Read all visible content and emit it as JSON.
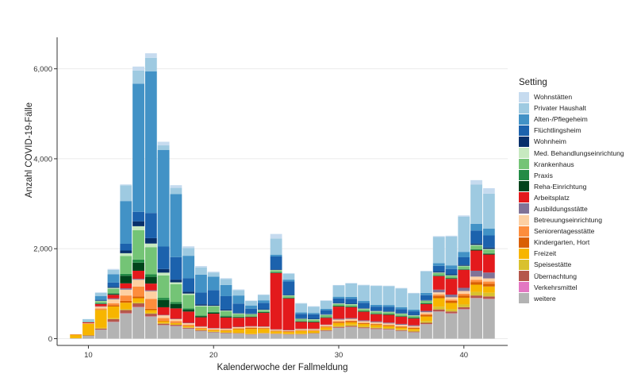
{
  "chart_data": {
    "type": "bar",
    "stacked": true,
    "title": "",
    "xlabel": "Kalenderwoche der Fallmeldung",
    "ylabel": "Anzahl COVID-19-Fälle",
    "x_ticks": [
      10,
      20,
      30,
      40
    ],
    "y_ticks": [
      0,
      2000,
      4000,
      6000
    ],
    "y_tick_labels": [
      "0",
      "2,000",
      "4,000",
      "6,000"
    ],
    "xlim": [
      7.5,
      43.5
    ],
    "ylim": [
      -150,
      6700
    ],
    "grid": "horizontal",
    "legend_position": "right",
    "legend_title": "Setting",
    "weeks": [
      9,
      10,
      11,
      12,
      13,
      14,
      15,
      16,
      17,
      18,
      19,
      20,
      21,
      22,
      23,
      24,
      25,
      26,
      27,
      28,
      29,
      30,
      31,
      32,
      33,
      34,
      35,
      36,
      37,
      38,
      39,
      40,
      41,
      42
    ],
    "series": [
      {
        "name": "weitere",
        "color": "#b3b3b3",
        "values": [
          10,
          60,
          200,
          370,
          560,
          700,
          490,
          300,
          280,
          220,
          170,
          140,
          120,
          110,
          90,
          110,
          100,
          90,
          90,
          110,
          170,
          240,
          260,
          230,
          210,
          200,
          170,
          140,
          320,
          600,
          560,
          650,
          900,
          880
        ]
      },
      {
        "name": "Verkehrsmittel",
        "color": "#e377c2",
        "values": [
          0,
          0,
          0,
          5,
          5,
          5,
          5,
          3,
          3,
          3,
          2,
          2,
          2,
          2,
          2,
          2,
          2,
          2,
          2,
          2,
          3,
          3,
          3,
          3,
          3,
          3,
          3,
          3,
          3,
          5,
          5,
          5,
          5,
          5
        ]
      },
      {
        "name": "Übernachtung",
        "color": "#b5574b",
        "values": [
          0,
          10,
          25,
          60,
          70,
          80,
          60,
          30,
          25,
          20,
          15,
          10,
          10,
          10,
          8,
          8,
          8,
          8,
          10,
          10,
          15,
          20,
          20,
          20,
          20,
          15,
          15,
          15,
          30,
          45,
          40,
          45,
          55,
          55
        ]
      },
      {
        "name": "Speisestätte",
        "color": "#d9c12e",
        "values": [
          0,
          10,
          15,
          20,
          25,
          25,
          20,
          15,
          10,
          10,
          8,
          8,
          8,
          8,
          8,
          8,
          8,
          8,
          10,
          10,
          15,
          25,
          30,
          25,
          20,
          20,
          20,
          20,
          40,
          60,
          50,
          60,
          80,
          80
        ]
      },
      {
        "name": "Freizeit",
        "color": "#f7b500",
        "values": [
          80,
          250,
          400,
          260,
          140,
          90,
          60,
          40,
          30,
          25,
          20,
          25,
          40,
          80,
          110,
          90,
          45,
          40,
          60,
          40,
          50,
          60,
          50,
          50,
          50,
          40,
          40,
          40,
          100,
          190,
          140,
          150,
          160,
          140
        ]
      },
      {
        "name": "Kindergarten, Hort",
        "color": "#d95f02",
        "values": [
          0,
          5,
          10,
          30,
          40,
          40,
          30,
          10,
          5,
          5,
          5,
          5,
          10,
          15,
          20,
          15,
          10,
          10,
          10,
          10,
          15,
          25,
          25,
          20,
          20,
          20,
          20,
          20,
          35,
          50,
          45,
          50,
          60,
          60
        ]
      },
      {
        "name": "Seniorentagesstätte",
        "color": "#fd8d3c",
        "values": [
          0,
          0,
          20,
          40,
          120,
          220,
          220,
          60,
          40,
          30,
          20,
          15,
          10,
          10,
          10,
          10,
          10,
          10,
          10,
          10,
          10,
          15,
          15,
          10,
          10,
          10,
          10,
          10,
          20,
          30,
          30,
          40,
          50,
          50
        ]
      },
      {
        "name": "Betreuungseinrichtung",
        "color": "#fdd0a2",
        "values": [
          0,
          10,
          40,
          90,
          130,
          150,
          170,
          60,
          40,
          30,
          25,
          20,
          20,
          20,
          20,
          20,
          15,
          15,
          20,
          20,
          25,
          35,
          35,
          30,
          30,
          30,
          30,
          30,
          40,
          50,
          50,
          60,
          70,
          70
        ]
      },
      {
        "name": "Ausbildungsstätte",
        "color": "#807397",
        "values": [
          0,
          0,
          10,
          20,
          30,
          20,
          20,
          10,
          10,
          10,
          10,
          10,
          10,
          10,
          10,
          10,
          10,
          10,
          10,
          10,
          10,
          20,
          20,
          20,
          20,
          20,
          20,
          20,
          30,
          60,
          60,
          70,
          130,
          130
        ]
      },
      {
        "name": "Arbeitsplatz",
        "color": "#e31a1c",
        "values": [
          5,
          20,
          50,
          80,
          110,
          180,
          150,
          170,
          230,
          250,
          200,
          320,
          240,
          200,
          200,
          300,
          1250,
          700,
          150,
          140,
          150,
          270,
          240,
          190,
          160,
          170,
          160,
          150,
          150,
          300,
          350,
          400,
          450,
          400
        ]
      },
      {
        "name": "Reha-Einrichtung",
        "color": "#00441b",
        "values": [
          0,
          0,
          10,
          20,
          170,
          180,
          150,
          160,
          100,
          40,
          20,
          20,
          20,
          10,
          10,
          10,
          10,
          10,
          10,
          10,
          10,
          10,
          10,
          10,
          10,
          10,
          10,
          10,
          10,
          10,
          10,
          10,
          15,
          15
        ]
      },
      {
        "name": "Praxis",
        "color": "#238b45",
        "values": [
          0,
          0,
          10,
          15,
          40,
          70,
          60,
          50,
          40,
          30,
          20,
          20,
          20,
          15,
          10,
          10,
          10,
          10,
          10,
          10,
          10,
          10,
          10,
          10,
          10,
          10,
          10,
          10,
          10,
          10,
          10,
          10,
          15,
          15
        ]
      },
      {
        "name": "Krankenhaus",
        "color": "#74c476",
        "values": [
          0,
          10,
          40,
          100,
          400,
          650,
          600,
          500,
          400,
          300,
          200,
          120,
          100,
          60,
          40,
          40,
          40,
          40,
          40,
          40,
          40,
          40,
          40,
          40,
          40,
          40,
          40,
          40,
          50,
          50,
          50,
          60,
          80,
          80
        ]
      },
      {
        "name": "Med. Behandlungseinrichtung",
        "color": "#c7e9c0",
        "values": [
          0,
          0,
          10,
          20,
          60,
          90,
          80,
          60,
          40,
          30,
          20,
          15,
          15,
          10,
          10,
          10,
          10,
          10,
          10,
          10,
          10,
          10,
          10,
          10,
          10,
          10,
          10,
          10,
          10,
          10,
          10,
          10,
          15,
          15
        ]
      },
      {
        "name": "Wohnheim",
        "color": "#08306b",
        "values": [
          0,
          0,
          10,
          20,
          60,
          110,
          120,
          80,
          60,
          40,
          30,
          20,
          20,
          10,
          10,
          10,
          10,
          10,
          10,
          10,
          10,
          10,
          10,
          10,
          10,
          10,
          10,
          10,
          10,
          20,
          20,
          20,
          30,
          30
        ]
      },
      {
        "name": "Flüchtlingsheim",
        "color": "#1c62ad",
        "values": [
          0,
          0,
          20,
          100,
          150,
          210,
          560,
          500,
          500,
          300,
          260,
          330,
          300,
          210,
          110,
          140,
          290,
          300,
          100,
          100,
          90,
          100,
          110,
          120,
          90,
          100,
          90,
          80,
          110,
          130,
          120,
          170,
          290,
          270
        ]
      },
      {
        "name": "Alten-/Pflegeheim",
        "color": "#4292c6",
        "values": [
          0,
          10,
          80,
          180,
          950,
          2850,
          3150,
          2150,
          1400,
          500,
          400,
          300,
          250,
          180,
          70,
          60,
          40,
          40,
          30,
          30,
          30,
          40,
          40,
          40,
          40,
          40,
          40,
          40,
          50,
          60,
          80,
          120,
          150,
          150
        ]
      },
      {
        "name": "Privater Haushalt",
        "color": "#9ecae1",
        "values": [
          0,
          50,
          70,
          100,
          350,
          290,
          300,
          100,
          140,
          170,
          160,
          90,
          130,
          120,
          100,
          120,
          360,
          130,
          200,
          140,
          180,
          250,
          300,
          350,
          420,
          420,
          420,
          360,
          480,
          580,
          640,
          780,
          870,
          780
        ]
      },
      {
        "name": "Wohnstätten",
        "color": "#c6dbef",
        "values": [
          0,
          0,
          10,
          20,
          20,
          90,
          100,
          80,
          60,
          40,
          30,
          20,
          20,
          15,
          10,
          10,
          100,
          15,
          10,
          10,
          10,
          10,
          10,
          10,
          10,
          10,
          10,
          10,
          10,
          20,
          20,
          30,
          100,
          120
        ]
      }
    ]
  }
}
